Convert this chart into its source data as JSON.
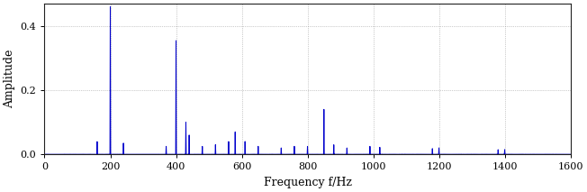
{
  "title": "",
  "xlabel": "Frequency f/Hz",
  "ylabel": "Amplitude",
  "xlim": [
    0,
    1600
  ],
  "ylim": [
    0,
    0.47
  ],
  "xticks": [
    0,
    200,
    400,
    600,
    800,
    1000,
    1200,
    1400,
    1600
  ],
  "yticks": [
    0,
    0.2,
    0.4
  ],
  "line_color": "#0000CC",
  "grid_color": "#777777",
  "grid_style": ":",
  "fs": 8000,
  "n_points": 8000,
  "peaks": [
    {
      "freq": 200,
      "amp": 0.46
    },
    {
      "freq": 400,
      "amp": 0.355
    },
    {
      "freq": 430,
      "amp": 0.1
    },
    {
      "freq": 160,
      "amp": 0.04
    },
    {
      "freq": 240,
      "amp": 0.035
    },
    {
      "freq": 370,
      "amp": 0.025
    },
    {
      "freq": 440,
      "amp": 0.06
    },
    {
      "freq": 480,
      "amp": 0.025
    },
    {
      "freq": 520,
      "amp": 0.03
    },
    {
      "freq": 560,
      "amp": 0.04
    },
    {
      "freq": 580,
      "amp": 0.07
    },
    {
      "freq": 610,
      "amp": 0.04
    },
    {
      "freq": 650,
      "amp": 0.025
    },
    {
      "freq": 720,
      "amp": 0.02
    },
    {
      "freq": 760,
      "amp": 0.025
    },
    {
      "freq": 800,
      "amp": 0.025
    },
    {
      "freq": 850,
      "amp": 0.14
    },
    {
      "freq": 880,
      "amp": 0.03
    },
    {
      "freq": 920,
      "amp": 0.02
    },
    {
      "freq": 990,
      "amp": 0.025
    },
    {
      "freq": 1020,
      "amp": 0.022
    },
    {
      "freq": 1180,
      "amp": 0.018
    },
    {
      "freq": 1200,
      "amp": 0.02
    },
    {
      "freq": 1380,
      "amp": 0.015
    },
    {
      "freq": 1400,
      "amp": 0.015
    }
  ],
  "noise_level": 0.008,
  "background_color": "#ffffff"
}
